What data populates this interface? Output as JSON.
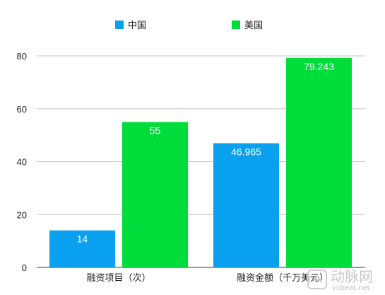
{
  "chart_data": {
    "type": "bar",
    "categories": [
      "融资项目（次）",
      "融资金额（千万美元）"
    ],
    "series": [
      {
        "name": "中国",
        "values": [
          14,
          46.965
        ],
        "color": "#0aa0f0"
      },
      {
        "name": "美国",
        "values": [
          55,
          79.243
        ],
        "color": "#00dd3a"
      }
    ],
    "title": "",
    "xlabel": "",
    "ylabel": "",
    "ylim": [
      0,
      80
    ],
    "yticks": [
      0,
      20,
      40,
      60,
      80
    ],
    "grid": true,
    "legend": "top-center",
    "data_labels": [
      "14",
      "46.965",
      "55",
      "79.243"
    ]
  },
  "watermark": {
    "text": "动脉网",
    "sub": "vcbeat.net"
  }
}
